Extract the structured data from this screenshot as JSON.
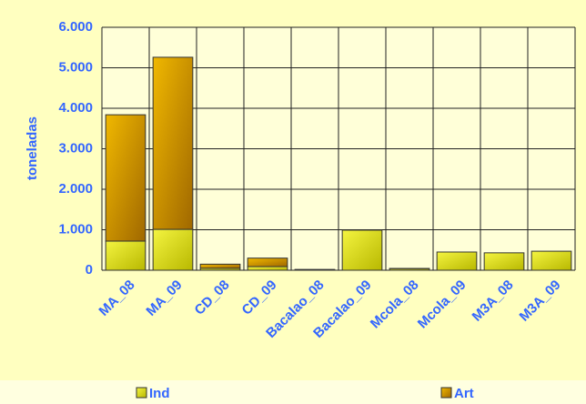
{
  "chart_data": {
    "type": "stacked_bar",
    "y_label": "toneladas",
    "categories": [
      "MA_08",
      "MA_09",
      "CD_08",
      "CD_09",
      "Bacalao_08",
      "Bacalao_09",
      "Mcola_08",
      "Mcola_09",
      "M3A_08",
      "M3A_09"
    ],
    "series": [
      {
        "name": "Ind",
        "color": "#e0e020",
        "values": [
          720,
          1010,
          50,
          90,
          10,
          990,
          40,
          450,
          430,
          470
        ]
      },
      {
        "name": "Art",
        "color": "#d4a000",
        "values": [
          3120,
          4250,
          100,
          210,
          10,
          0,
          5,
          0,
          0,
          0
        ]
      }
    ],
    "ylim": [
      0,
      6000
    ],
    "yticks": [
      0,
      {
        "value": 1000,
        "label": "1.000"
      },
      {
        "value": 2000,
        "label": "2.000"
      },
      {
        "value": 3000,
        "label": "3.000"
      },
      {
        "value": 4000,
        "label": "4.000"
      },
      {
        "value": 5000,
        "label": "5.000"
      },
      {
        "value": 6000,
        "label": "6.000"
      }
    ],
    "grid": true,
    "legend": "bottom"
  }
}
